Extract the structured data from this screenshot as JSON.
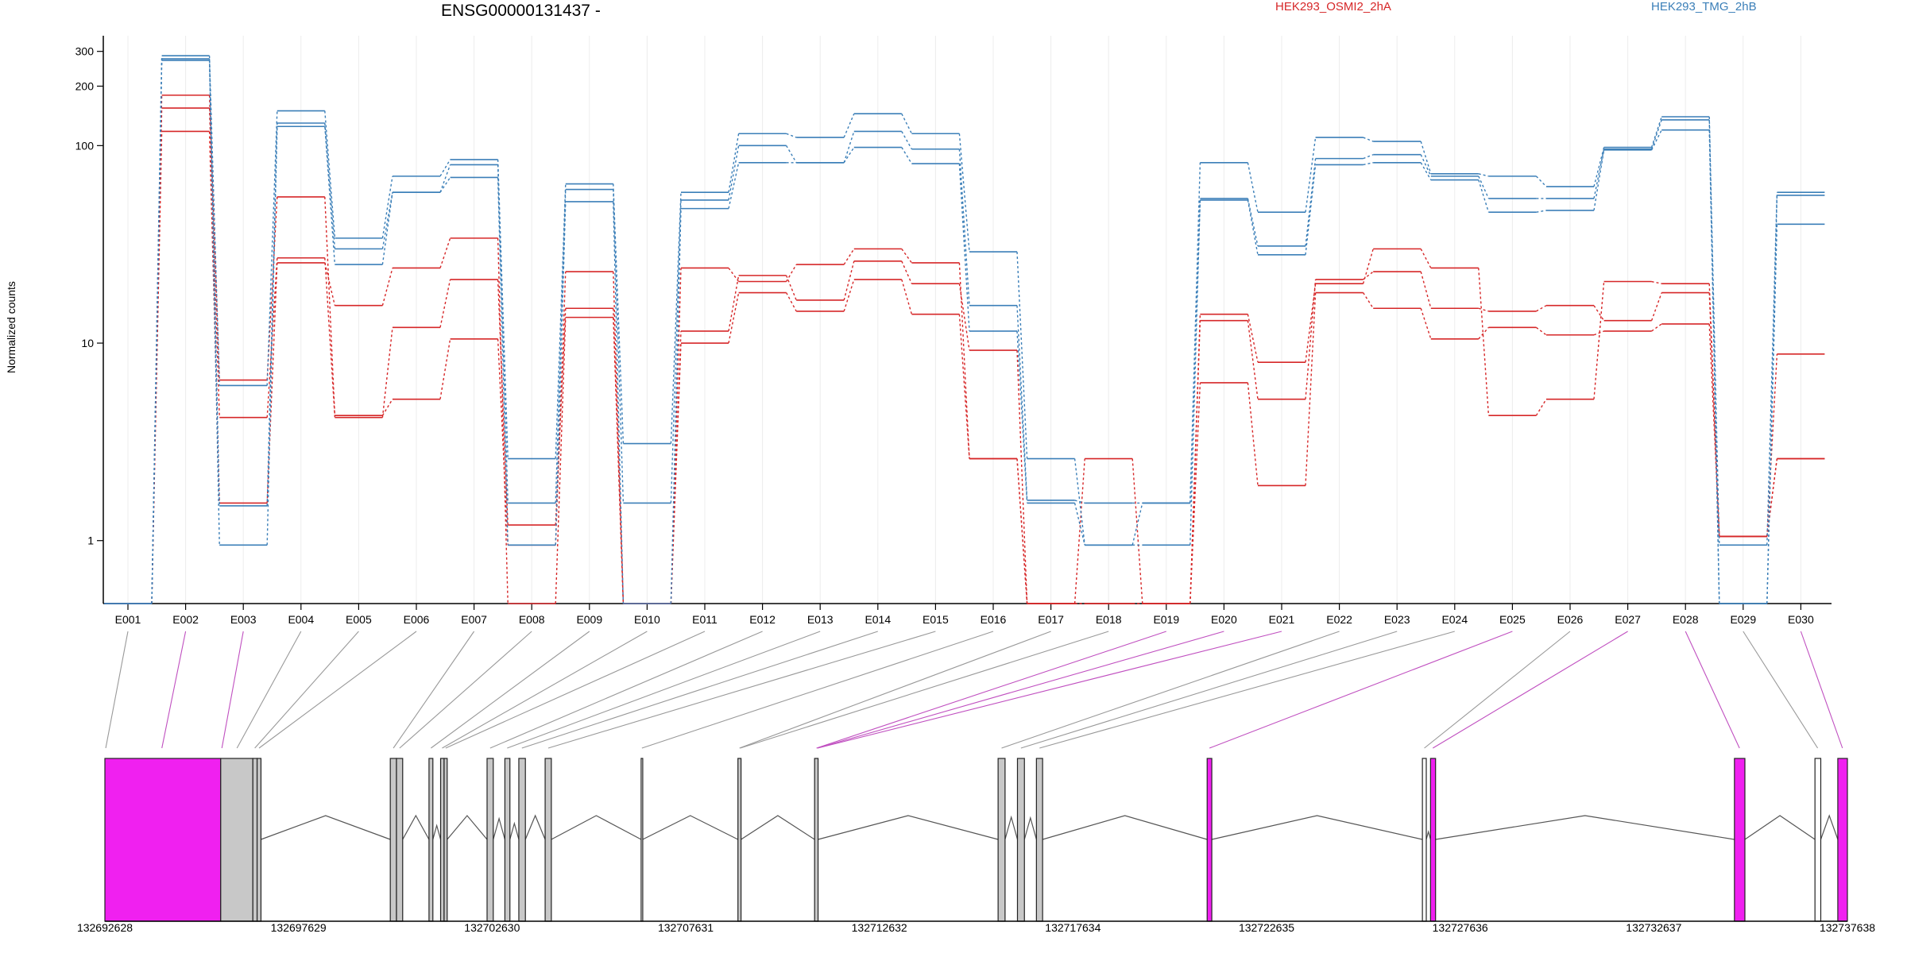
{
  "chart_data": {
    "type": "line",
    "title": "ENSG00000131437 -",
    "ylabel": "Normalized counts",
    "yscale": "log",
    "ylim": [
      0.48,
      360
    ],
    "yticks": [
      1,
      10,
      100,
      200,
      300
    ],
    "categories": [
      "E001",
      "E002",
      "E003",
      "E004",
      "E005",
      "E006",
      "E007",
      "E008",
      "E009",
      "E010",
      "E011",
      "E012",
      "E013",
      "E014",
      "E015",
      "E016",
      "E017",
      "E018",
      "E019",
      "E020",
      "E021",
      "E022",
      "E023",
      "E024",
      "E025",
      "E026",
      "E027",
      "E028",
      "E029",
      "E030"
    ],
    "legend": [
      {
        "label": "HEK293_OSMI2_2hA",
        "color": "#d62728"
      },
      {
        "label": "HEK293_TMG_2hB",
        "color": "#3b7fb8"
      }
    ],
    "series": [
      {
        "group": 0,
        "values": [
          0.48,
          180,
          6.5,
          55,
          4.3,
          5.2,
          10.5,
          0.95,
          23,
          0.48,
          24,
          20.5,
          25,
          30,
          25.5,
          2.6,
          0.48,
          2.6,
          0.48,
          14,
          8,
          20,
          30,
          24,
          4.3,
          5.2,
          20.5,
          20,
          1.05,
          2.6
        ]
      },
      {
        "group": 0,
        "values": [
          0.48,
          155,
          4.2,
          27,
          4.2,
          12,
          21,
          1.2,
          15,
          0.48,
          11.5,
          22,
          16.5,
          26,
          20,
          9.2,
          0.48,
          0.48,
          0.48,
          13,
          5.2,
          21,
          23,
          15,
          14.5,
          15.5,
          13,
          18,
          1.05,
          8.8
        ]
      },
      {
        "group": 0,
        "values": [
          0.48,
          118,
          1.55,
          25.5,
          15.5,
          24,
          34,
          0.48,
          13.5,
          0.48,
          10,
          18,
          14.5,
          21,
          14,
          2.6,
          0.48,
          0.48,
          0.48,
          6.3,
          1.9,
          18,
          15,
          10.5,
          12,
          11,
          11.5,
          12.5,
          1.05,
          2.6
        ]
      },
      {
        "group": 1,
        "values": [
          0.48,
          285,
          6.1,
          150,
          34,
          70,
          85,
          2.6,
          64,
          3.1,
          58,
          115,
          110,
          145,
          115,
          29,
          2.6,
          0.95,
          1.55,
          82,
          46,
          110,
          105,
          72,
          70,
          62,
          98,
          140,
          0.95,
          58
        ]
      },
      {
        "group": 1,
        "values": [
          0.48,
          275,
          1.5,
          130,
          30,
          58,
          80,
          1.55,
          60,
          1.55,
          53,
          100,
          82,
          118,
          96,
          15.5,
          1.6,
          1.55,
          1.55,
          54,
          31,
          86,
          90,
          70,
          54,
          54,
          96,
          135,
          0.48,
          56
        ]
      },
      {
        "group": 1,
        "values": [
          0.48,
          270,
          0.95,
          125,
          25,
          58,
          69,
          0.95,
          52,
          0.48,
          48,
          82,
          82,
          98,
          81,
          11.5,
          1.55,
          0.95,
          0.95,
          53,
          28,
          80,
          82,
          67,
          46,
          47,
          95,
          120,
          0.48,
          40
        ]
      }
    ],
    "gene_model": {
      "coord_labels": [
        "132692628",
        "132697629",
        "132702630",
        "132707631",
        "132712632",
        "132717634",
        "132722635",
        "132727636",
        "132732637",
        "132737638"
      ],
      "xlim": [
        132692628,
        132737638
      ],
      "exon_fill": {
        "tested": "#c8c8c8",
        "significant": "#f020f0",
        "other": "#ffffff"
      },
      "exons": [
        {
          "start": 132692628,
          "end": 132695620,
          "type": "significant"
        },
        {
          "start": 132695620,
          "end": 132696450,
          "type": "tested"
        },
        {
          "start": 132696450,
          "end": 132696560,
          "type": "tested"
        },
        {
          "start": 132696560,
          "end": 132696660,
          "type": "tested"
        },
        {
          "start": 132700000,
          "end": 132700160,
          "type": "tested"
        },
        {
          "start": 132700160,
          "end": 132700320,
          "type": "tested"
        },
        {
          "start": 132701000,
          "end": 132701100,
          "type": "tested"
        },
        {
          "start": 132701300,
          "end": 132701390,
          "type": "tested"
        },
        {
          "start": 132701390,
          "end": 132701470,
          "type": "tested"
        },
        {
          "start": 132702500,
          "end": 132702660,
          "type": "tested"
        },
        {
          "start": 132702960,
          "end": 132703090,
          "type": "tested"
        },
        {
          "start": 132703320,
          "end": 132703490,
          "type": "tested"
        },
        {
          "start": 132704000,
          "end": 132704160,
          "type": "tested"
        },
        {
          "start": 132706480,
          "end": 132706520,
          "type": "other"
        },
        {
          "start": 132708980,
          "end": 132709060,
          "type": "tested"
        },
        {
          "start": 132710960,
          "end": 132711050,
          "type": "tested"
        },
        {
          "start": 132715700,
          "end": 132715880,
          "type": "tested"
        },
        {
          "start": 132716200,
          "end": 132716380,
          "type": "tested"
        },
        {
          "start": 132716690,
          "end": 132716850,
          "type": "tested"
        },
        {
          "start": 132721100,
          "end": 132721220,
          "type": "significant"
        },
        {
          "start": 132726660,
          "end": 132726760,
          "type": "other"
        },
        {
          "start": 132726870,
          "end": 132727000,
          "type": "significant"
        },
        {
          "start": 132734720,
          "end": 132734990,
          "type": "significant"
        },
        {
          "start": 132736800,
          "end": 132736950,
          "type": "other"
        },
        {
          "start": 132737390,
          "end": 132737638,
          "type": "significant"
        }
      ],
      "connectors": [
        {
          "exon": "E001",
          "target": 132692650,
          "significant": false
        },
        {
          "exon": "E002",
          "target": 132694100,
          "significant": true
        },
        {
          "exon": "E003",
          "target": 132695650,
          "significant": true
        },
        {
          "exon": "E004",
          "target": 132696040,
          "significant": false
        },
        {
          "exon": "E005",
          "target": 132696500,
          "significant": false
        },
        {
          "exon": "E006",
          "target": 132696610,
          "significant": false
        },
        {
          "exon": "E007",
          "target": 132700080,
          "significant": false
        },
        {
          "exon": "E008",
          "target": 132700240,
          "significant": false
        },
        {
          "exon": "E009",
          "target": 132701050,
          "significant": false
        },
        {
          "exon": "E010",
          "target": 132701340,
          "significant": false
        },
        {
          "exon": "E011",
          "target": 132701430,
          "significant": false
        },
        {
          "exon": "E012",
          "target": 132702580,
          "significant": false
        },
        {
          "exon": "E013",
          "target": 132703020,
          "significant": false
        },
        {
          "exon": "E014",
          "target": 132703400,
          "significant": false
        },
        {
          "exon": "E015",
          "target": 132704080,
          "significant": false
        },
        {
          "exon": "E016",
          "target": 132706500,
          "significant": false
        },
        {
          "exon": "E017",
          "target": 132709020,
          "significant": false
        },
        {
          "exon": "E018",
          "target": 132709040,
          "significant": false
        },
        {
          "exon": "E019",
          "target": 132711010,
          "significant": true
        },
        {
          "exon": "E020",
          "target": 132711030,
          "significant": true
        },
        {
          "exon": "E021",
          "target": 132711040,
          "significant": true
        },
        {
          "exon": "E022",
          "target": 132715790,
          "significant": false
        },
        {
          "exon": "E023",
          "target": 132716290,
          "significant": false
        },
        {
          "exon": "E024",
          "target": 132716770,
          "significant": false
        },
        {
          "exon": "E025",
          "target": 132721160,
          "significant": true
        },
        {
          "exon": "E026",
          "target": 132726710,
          "significant": false
        },
        {
          "exon": "E027",
          "target": 132726930,
          "significant": true
        },
        {
          "exon": "E028",
          "target": 132734850,
          "significant": true
        },
        {
          "exon": "E029",
          "target": 132736870,
          "significant": false
        },
        {
          "exon": "E030",
          "target": 132737510,
          "significant": true
        }
      ]
    }
  }
}
